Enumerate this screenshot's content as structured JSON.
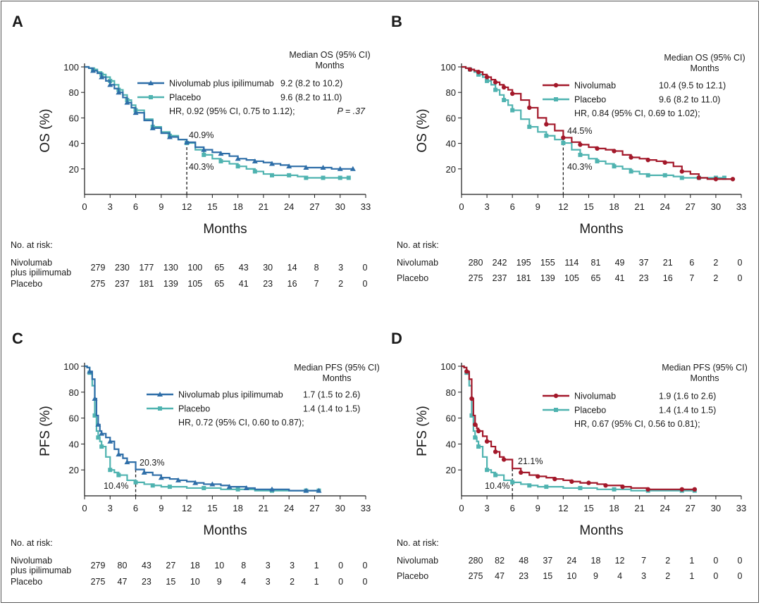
{
  "colors": {
    "nivo_ipi": "#2e6ea8",
    "placebo": "#4fb3b0",
    "nivo": "#a3182a",
    "axis": "#1a1a1a"
  },
  "chart_data": [
    {
      "panel": "A",
      "type": "line",
      "ylabel": "OS (%)",
      "xlabel": "Months",
      "xlim": [
        0,
        33
      ],
      "ylim": [
        0,
        100
      ],
      "xticks": [
        "0",
        "3",
        "6",
        "9",
        "12",
        "15",
        "18",
        "21",
        "24",
        "27",
        "30",
        "33"
      ],
      "yticks": [
        "20",
        "40",
        "60",
        "80",
        "100"
      ],
      "legend_title": [
        "Median OS (95% CI)",
        "Months"
      ],
      "hr_text": "HR, 0.92 (95% CI, 0.75 to 1.12);",
      "p_text": "P = .37",
      "series": [
        {
          "name": "Nivolumab plus ipilimumab",
          "color": "#2e6ea8",
          "marker": "triangle",
          "median": "9.2 (8.2 to 10.2)",
          "x": [
            0,
            0.5,
            1,
            1.5,
            2,
            2.5,
            3,
            3.5,
            4,
            4.5,
            5,
            5.5,
            6,
            7,
            8,
            9,
            10,
            11,
            12,
            13,
            14,
            15,
            16,
            17,
            18,
            19,
            20,
            21,
            22,
            23,
            24,
            25,
            26,
            27,
            28,
            29,
            30,
            31.5
          ],
          "y": [
            100,
            99,
            97,
            95,
            92,
            89,
            86,
            83,
            80,
            76,
            72,
            68,
            64,
            58,
            52,
            48,
            45,
            43,
            40.9,
            37,
            35,
            33,
            32,
            30,
            28,
            27,
            26,
            25,
            24,
            23,
            22,
            22,
            21,
            21,
            21,
            20,
            20,
            20
          ]
        },
        {
          "name": "Placebo",
          "color": "#4fb3b0",
          "marker": "square",
          "median": "9.6 (8.2 to 11.0)",
          "x": [
            0,
            0.5,
            1,
            1.5,
            2,
            2.5,
            3,
            3.5,
            4,
            4.5,
            5,
            5.5,
            6,
            7,
            8,
            9,
            10,
            11,
            12,
            13,
            14,
            15,
            16,
            17,
            18,
            19,
            20,
            21,
            22,
            23,
            24,
            25,
            26,
            27,
            28,
            29,
            30,
            31
          ],
          "y": [
            100,
            99,
            98,
            96,
            94,
            92,
            89,
            86,
            82,
            78,
            74,
            70,
            66,
            59,
            53,
            49,
            46,
            43,
            40.3,
            35,
            31,
            28,
            26,
            24,
            22,
            20,
            18,
            16,
            15,
            15,
            15,
            14,
            13,
            13,
            13,
            13,
            13,
            13
          ]
        }
      ],
      "annotations": [
        {
          "text": "40.9%"
        },
        {
          "text": "40.3%"
        }
      ],
      "landmark_x": 12,
      "risk_table": {
        "title": "No. at risk:",
        "rows": [
          {
            "label": "Nivolumab",
            "label2": "plus ipilimumab",
            "values": [
              "279",
              "230",
              "177",
              "130",
              "100",
              "65",
              "43",
              "30",
              "14",
              "8",
              "3",
              "0"
            ]
          },
          {
            "label": "Placebo",
            "label2": "",
            "values": [
              "275",
              "237",
              "181",
              "139",
              "105",
              "65",
              "41",
              "23",
              "16",
              "7",
              "2",
              "0"
            ]
          }
        ]
      }
    },
    {
      "panel": "B",
      "type": "line",
      "ylabel": "OS (%)",
      "xlabel": "Months",
      "xlim": [
        0,
        33
      ],
      "ylim": [
        0,
        100
      ],
      "xticks": [
        "0",
        "3",
        "6",
        "9",
        "12",
        "15",
        "18",
        "21",
        "24",
        "27",
        "30",
        "33"
      ],
      "yticks": [
        "20",
        "40",
        "60",
        "80",
        "100"
      ],
      "legend_title": [
        "Median OS (95% CI)",
        "Months"
      ],
      "hr_text": "HR, 0.84 (95% CI, 0.69 to 1.02);",
      "p_text": "",
      "series": [
        {
          "name": "Nivolumab",
          "color": "#a3182a",
          "marker": "circle",
          "median": "10.4 (9.5 to 12.1)",
          "x": [
            0,
            0.5,
            1,
            1.5,
            2,
            2.5,
            3,
            3.5,
            4,
            4.5,
            5,
            5.5,
            6,
            7,
            8,
            9,
            10,
            11,
            12,
            13,
            14,
            15,
            16,
            17,
            18,
            19,
            20,
            21,
            22,
            23,
            24,
            25,
            26,
            27,
            28,
            29,
            30,
            31,
            32
          ],
          "y": [
            100,
            99,
            98,
            97,
            96,
            94,
            92,
            90,
            88,
            86,
            84,
            82,
            79,
            74,
            68,
            60,
            55,
            50,
            44.5,
            41,
            39,
            37,
            36,
            35,
            34,
            31,
            29,
            28,
            27,
            26,
            25,
            22,
            18,
            16,
            13,
            12,
            12,
            12,
            12
          ]
        },
        {
          "name": "Placebo",
          "color": "#4fb3b0",
          "marker": "square",
          "median": "9.6 (8.2 to 11.0)",
          "x": [
            0,
            0.5,
            1,
            1.5,
            2,
            2.5,
            3,
            3.5,
            4,
            4.5,
            5,
            5.5,
            6,
            7,
            8,
            9,
            10,
            11,
            12,
            13,
            14,
            15,
            16,
            17,
            18,
            19,
            20,
            21,
            22,
            23,
            24,
            25,
            26,
            27,
            28,
            29,
            30,
            31
          ],
          "y": [
            100,
            99,
            98,
            96,
            94,
            92,
            89,
            86,
            82,
            78,
            74,
            70,
            66,
            59,
            53,
            49,
            46,
            43,
            40.3,
            35,
            31,
            28,
            26,
            24,
            22,
            20,
            18,
            16,
            15,
            15,
            15,
            14,
            13,
            13,
            13,
            13,
            13,
            13
          ]
        }
      ],
      "annotations": [
        {
          "text": "44.5%"
        },
        {
          "text": "40.3%"
        }
      ],
      "landmark_x": 12,
      "risk_table": {
        "title": "No. at risk:",
        "rows": [
          {
            "label": "Nivolumab",
            "label2": "",
            "values": [
              "280",
              "242",
              "195",
              "155",
              "114",
              "81",
              "49",
              "37",
              "21",
              "6",
              "2",
              "0"
            ]
          },
          {
            "label": "Placebo",
            "label2": "",
            "values": [
              "275",
              "237",
              "181",
              "139",
              "105",
              "65",
              "41",
              "23",
              "16",
              "7",
              "2",
              "0"
            ]
          }
        ]
      }
    },
    {
      "panel": "C",
      "type": "line",
      "ylabel": "PFS (%)",
      "xlabel": "Months",
      "xlim": [
        0,
        33
      ],
      "ylim": [
        0,
        100
      ],
      "xticks": [
        "0",
        "3",
        "6",
        "9",
        "12",
        "15",
        "18",
        "21",
        "24",
        "27",
        "30",
        "33"
      ],
      "yticks": [
        "20",
        "40",
        "60",
        "80",
        "100"
      ],
      "legend_title": [
        "Median PFS (95% CI)",
        "Months"
      ],
      "hr_text": "HR, 0.72 (95% CI, 0.60 to 0.87);",
      "p_text": "",
      "series": [
        {
          "name": "Nivolumab plus ipilimumab",
          "color": "#2e6ea8",
          "marker": "triangle",
          "median": "1.7 (1.5 to 2.6)",
          "x": [
            0,
            0.3,
            0.6,
            0.9,
            1.2,
            1.4,
            1.6,
            1.8,
            2.0,
            2.5,
            3,
            3.5,
            4,
            4.5,
            5,
            6,
            7,
            8,
            9,
            10,
            11,
            12,
            13,
            14,
            15,
            16,
            17,
            18,
            19,
            20,
            22,
            24,
            26,
            27.5
          ],
          "y": [
            100,
            99,
            96,
            90,
            75,
            62,
            55,
            50,
            48,
            45,
            42,
            36,
            32,
            29,
            26,
            20.3,
            18,
            16,
            14,
            13,
            12,
            11,
            10,
            9,
            9,
            8,
            7,
            7,
            6,
            5,
            5,
            4,
            4,
            4
          ]
        },
        {
          "name": "Placebo",
          "color": "#4fb3b0",
          "marker": "square",
          "median": "1.4 (1.4 to 1.5)",
          "x": [
            0,
            0.3,
            0.6,
            0.9,
            1.2,
            1.4,
            1.6,
            1.8,
            2.0,
            2.5,
            3,
            3.5,
            4,
            5,
            6,
            7,
            8,
            9,
            10,
            12,
            14,
            16,
            18,
            20,
            22,
            24,
            26,
            27.5
          ],
          "y": [
            100,
            99,
            95,
            85,
            62,
            50,
            45,
            42,
            38,
            30,
            20,
            18,
            16,
            12,
            10.4,
            9,
            8,
            7,
            7,
            6,
            6,
            5,
            5,
            4,
            4,
            4,
            4,
            4
          ]
        }
      ],
      "annotations": [
        {
          "text": "20.3%"
        },
        {
          "text": "10.4%"
        }
      ],
      "landmark_x": 6,
      "risk_table": {
        "title": "No. at risk:",
        "rows": [
          {
            "label": "Nivolumab",
            "label2": "plus ipilimumab",
            "values": [
              "279",
              "80",
              "43",
              "27",
              "18",
              "10",
              "8",
              "3",
              "3",
              "1",
              "0",
              "0"
            ]
          },
          {
            "label": "Placebo",
            "label2": "",
            "values": [
              "275",
              "47",
              "23",
              "15",
              "10",
              "9",
              "4",
              "3",
              "2",
              "1",
              "0",
              "0"
            ]
          }
        ]
      }
    },
    {
      "panel": "D",
      "type": "line",
      "ylabel": "PFS (%)",
      "xlabel": "Months",
      "xlim": [
        0,
        33
      ],
      "ylim": [
        0,
        100
      ],
      "xticks": [
        "0",
        "3",
        "6",
        "9",
        "12",
        "15",
        "18",
        "21",
        "24",
        "27",
        "30",
        "33"
      ],
      "yticks": [
        "20",
        "40",
        "60",
        "80",
        "100"
      ],
      "legend_title": [
        "Median PFS (95% CI)",
        "Months"
      ],
      "hr_text": "HR, 0.67 (95% CI, 0.56 to 0.81);",
      "p_text": "",
      "series": [
        {
          "name": "Nivolumab",
          "color": "#a3182a",
          "marker": "circle",
          "median": "1.9 (1.6 to 2.6)",
          "x": [
            0,
            0.3,
            0.6,
            0.9,
            1.2,
            1.4,
            1.6,
            1.8,
            2.0,
            2.5,
            3,
            3.5,
            4,
            4.5,
            5,
            6,
            7,
            8,
            9,
            10,
            11,
            12,
            13,
            14,
            15,
            16,
            17,
            18,
            19,
            20,
            22,
            24,
            26,
            27.5
          ],
          "y": [
            100,
            99,
            96,
            90,
            75,
            62,
            55,
            52,
            50,
            46,
            42,
            38,
            34,
            30,
            28,
            21.1,
            18,
            16,
            15,
            14,
            13,
            12,
            11,
            10,
            10,
            9,
            8,
            8,
            7,
            6,
            5,
            5,
            5,
            5
          ]
        },
        {
          "name": "Placebo",
          "color": "#4fb3b0",
          "marker": "square",
          "median": "1.4 (1.4 to 1.5)",
          "x": [
            0,
            0.3,
            0.6,
            0.9,
            1.2,
            1.4,
            1.6,
            1.8,
            2.0,
            2.5,
            3,
            3.5,
            4,
            5,
            6,
            7,
            8,
            9,
            10,
            12,
            14,
            16,
            18,
            20,
            22,
            24,
            26,
            27.5
          ],
          "y": [
            100,
            99,
            95,
            85,
            62,
            50,
            45,
            42,
            38,
            30,
            20,
            18,
            16,
            12,
            10.4,
            9,
            8,
            7,
            7,
            6,
            6,
            5,
            5,
            4,
            4,
            4,
            4,
            4
          ]
        }
      ],
      "annotations": [
        {
          "text": "21.1%"
        },
        {
          "text": "10.4%"
        }
      ],
      "landmark_x": 6,
      "risk_table": {
        "title": "No. at risk:",
        "rows": [
          {
            "label": "Nivolumab",
            "label2": "",
            "values": [
              "280",
              "82",
              "48",
              "37",
              "24",
              "18",
              "12",
              "7",
              "2",
              "1",
              "0",
              "0"
            ]
          },
          {
            "label": "Placebo",
            "label2": "",
            "values": [
              "275",
              "47",
              "23",
              "15",
              "10",
              "9",
              "4",
              "3",
              "2",
              "1",
              "0",
              "0"
            ]
          }
        ]
      }
    }
  ]
}
